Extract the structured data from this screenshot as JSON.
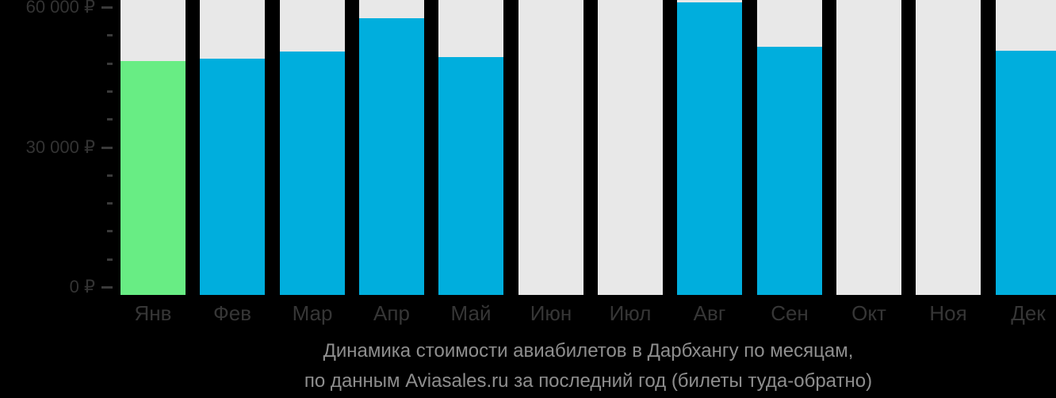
{
  "chart": {
    "title_line1": "Динамика стоимости авиабилетов в Дарбхангу по месяцам,",
    "title_line2": "по данным Aviasales.ru за последний год (билеты туда-обратно)"
  },
  "chart_data": {
    "type": "bar",
    "title": "Динамика стоимости авиабилетов в Дарбхангу по месяцам, по данным Aviasales.ru за последний год (билеты туда-обратно)",
    "categories": [
      "Янв",
      "Фев",
      "Мар",
      "Апр",
      "Май",
      "Июн",
      "Июл",
      "Авг",
      "Сен",
      "Окт",
      "Ноя",
      "Дек"
    ],
    "values": [
      48500,
      49000,
      50400,
      57600,
      49300,
      null,
      null,
      61000,
      51500,
      null,
      null,
      50700
    ],
    "unit": "₽",
    "ylabel": "",
    "ylim": [
      0,
      66000
    ],
    "yticks": [
      {
        "value": 0,
        "label": "0 ₽"
      },
      {
        "value": 30000,
        "label": "30 000 ₽"
      },
      {
        "value": 60000,
        "label": "60 000 ₽"
      }
    ],
    "minor_tick_step": 6000,
    "highlight_index": 0,
    "legend": null,
    "grid": false,
    "colors": {
      "background": "#000000",
      "column_bg": "#e8e8e8",
      "bar": "#00aedd",
      "bar_highlight": "#68ed84",
      "axis_text": "#333333",
      "tick_dash": "#3a3a3a",
      "month_text": "#363636",
      "title_text": "#8e8e8e"
    }
  }
}
